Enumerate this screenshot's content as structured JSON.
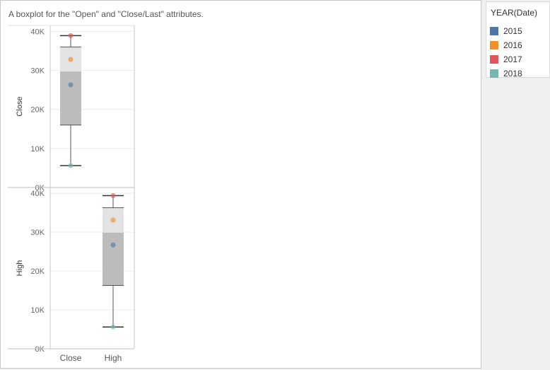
{
  "chart_data": {
    "type": "boxplot",
    "title": "A boxplot for the \"Open\" and \"Close/Last\" attributes.",
    "ytick_labels": [
      "0K",
      "10K",
      "20K",
      "30K",
      "40K"
    ],
    "yticks": [
      0,
      10000,
      20000,
      30000,
      40000
    ],
    "ylim": [
      0,
      41500
    ],
    "grid": true,
    "legend": {
      "title": "YEAR(Date)",
      "placement": "right",
      "entries": [
        {
          "label": "2015",
          "color": "#4e79a7"
        },
        {
          "label": "2016",
          "color": "#f28e2b"
        },
        {
          "label": "2017",
          "color": "#e15759"
        },
        {
          "label": "2018",
          "color": "#76b7b2"
        }
      ]
    },
    "panels": [
      {
        "ylabel": "Close",
        "category": "Close",
        "box": {
          "whisker_low": 5600,
          "q1": 16000,
          "median": 29700,
          "q3": 36000,
          "whisker_high": 38900
        },
        "points": [
          {
            "year": "2015",
            "value": 26300
          },
          {
            "year": "2016",
            "value": 32800
          },
          {
            "year": "2017",
            "value": 38900
          },
          {
            "year": "2018",
            "value": 5600
          }
        ]
      },
      {
        "ylabel": "High",
        "category": "High",
        "box": {
          "whisker_low": 5600,
          "q1": 16300,
          "median": 29900,
          "q3": 36300,
          "whisker_high": 39400
        },
        "points": [
          {
            "year": "2015",
            "value": 26700
          },
          {
            "year": "2016",
            "value": 33100
          },
          {
            "year": "2017",
            "value": 39400
          },
          {
            "year": "2018",
            "value": 5600
          }
        ]
      }
    ]
  }
}
